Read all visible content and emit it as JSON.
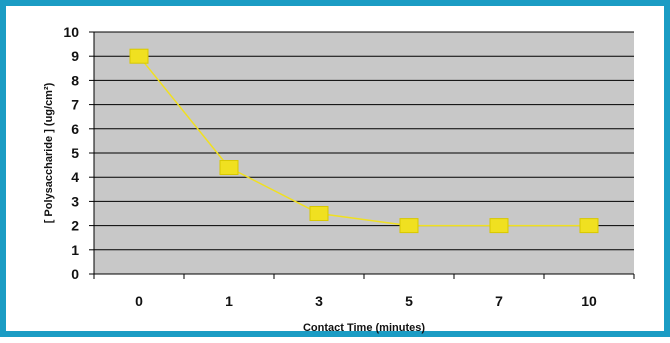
{
  "chart_data": {
    "type": "line",
    "categories": [
      "0",
      "1",
      "3",
      "5",
      "7",
      "10"
    ],
    "values": [
      9,
      4.4,
      2.5,
      2,
      2,
      2
    ],
    "xlabel": "Contact Time (minutes)",
    "ylabel": "[ Polysaccharide ] (ug/cm²)",
    "ylim": [
      0,
      10
    ],
    "yticks": [
      "0",
      "1",
      "2",
      "3",
      "4",
      "5",
      "6",
      "7",
      "8",
      "9",
      "10"
    ],
    "grid": "horizontal",
    "legend": "none",
    "colors": {
      "frame": "#1b9cc4",
      "plot_background": "#c8c8c8",
      "gridline": "#000000",
      "line": "#f0e020",
      "marker": "#f0e020",
      "marker_border": "#d8c800"
    }
  }
}
